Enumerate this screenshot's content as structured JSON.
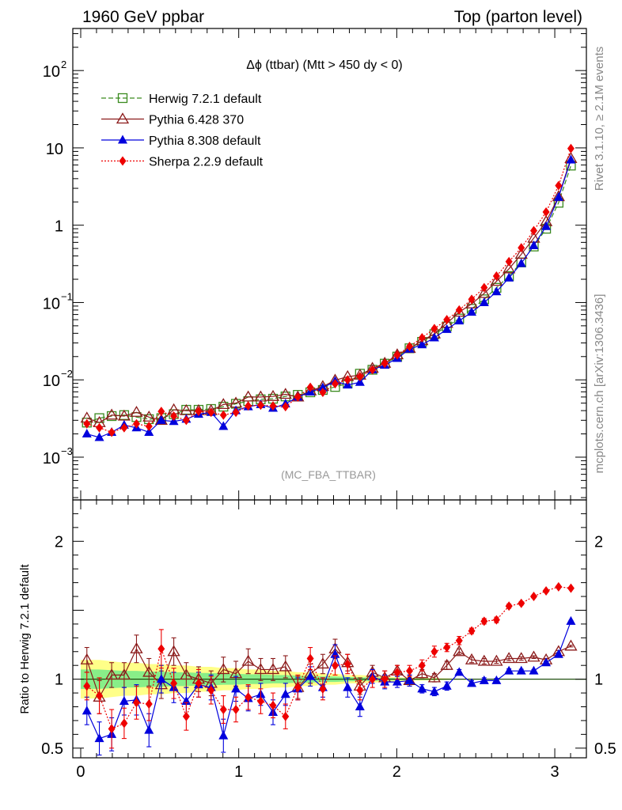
{
  "header": {
    "left": "1960 GeV ppbar",
    "right": "Top (parton level)"
  },
  "side_labels": {
    "top": "Rivet 3.1.10, ≥ 2.1M events",
    "bottom": "mcplots.cern.ch [arXiv:1306.3436]"
  },
  "plot_title": "Δϕ (ttbar) (Mtt > 450 dy < 0)",
  "watermark": "(MC_FBA_TTBAR)",
  "ratio_ylabel": "Ratio to Herwig 7.2.1 default",
  "colors": {
    "herwig": "#3a8a1e",
    "pythia6": "#8b1a1a",
    "pythia8": "#0000dd",
    "sherpa": "#ee0000",
    "band_yellow": "#ffff88",
    "band_green": "#88ee88"
  },
  "chart_data": [
    {
      "type": "line",
      "scale": "log",
      "xlim": [
        -0.05,
        3.2
      ],
      "ylim": [
        0.00028,
        350
      ],
      "yticks": [
        {
          "value": 0.001,
          "base": "10",
          "exp": "−3"
        },
        {
          "value": 0.01,
          "base": "10",
          "exp": "−2"
        },
        {
          "value": 0.1,
          "base": "10",
          "exp": "−1"
        },
        {
          "value": 1,
          "base": "1",
          "exp": ""
        },
        {
          "value": 10,
          "base": "10",
          "exp": ""
        },
        {
          "value": 100,
          "base": "10",
          "exp": "2"
        }
      ],
      "x": [
        0.039,
        0.118,
        0.196,
        0.275,
        0.353,
        0.432,
        0.51,
        0.589,
        0.668,
        0.746,
        0.825,
        0.903,
        0.982,
        1.06,
        1.139,
        1.217,
        1.296,
        1.374,
        1.453,
        1.532,
        1.61,
        1.689,
        1.767,
        1.846,
        1.924,
        2.003,
        2.081,
        2.16,
        2.238,
        2.317,
        2.395,
        2.474,
        2.553,
        2.631,
        2.71,
        2.788,
        2.867,
        2.945,
        3.024,
        3.102
      ],
      "series": [
        {
          "name": "Herwig 7.2.1 default",
          "key": "herwig",
          "values": [
            0.0028,
            0.0032,
            0.0034,
            0.0035,
            0.0033,
            0.0031,
            0.0032,
            0.0036,
            0.0041,
            0.0041,
            0.0042,
            0.0045,
            0.0049,
            0.0053,
            0.0056,
            0.0057,
            0.0061,
            0.0064,
            0.0069,
            0.0074,
            0.0081,
            0.009,
            0.012,
            0.0135,
            0.0162,
            0.02,
            0.0256,
            0.031,
            0.039,
            0.049,
            0.062,
            0.083,
            0.11,
            0.155,
            0.22,
            0.33,
            0.53,
            0.9,
            1.95,
            5.9
          ]
        },
        {
          "name": "Pythia 6.428 370",
          "key": "pythia6",
          "values": [
            0.0032,
            0.0028,
            0.0035,
            0.0034,
            0.0038,
            0.0033,
            0.003,
            0.0041,
            0.004,
            0.004,
            0.004,
            0.0048,
            0.005,
            0.006,
            0.006,
            0.0061,
            0.0065,
            0.006,
            0.0072,
            0.0082,
            0.0099,
            0.011,
            0.0115,
            0.0141,
            0.0164,
            0.0211,
            0.0255,
            0.0322,
            0.0393,
            0.0539,
            0.075,
            0.096,
            0.131,
            0.188,
            0.273,
            0.42,
            0.68,
            1.11,
            2.34,
            7.3
          ]
        },
        {
          "name": "Pythia 8.308 default",
          "key": "pythia8",
          "values": [
            0.002,
            0.0018,
            0.0021,
            0.0026,
            0.0024,
            0.0021,
            0.003,
            0.0029,
            0.0031,
            0.0036,
            0.0038,
            0.0025,
            0.004,
            0.0045,
            0.0048,
            0.0043,
            0.0049,
            0.006,
            0.007,
            0.0079,
            0.0096,
            0.0086,
            0.0093,
            0.0135,
            0.0155,
            0.019,
            0.025,
            0.0285,
            0.035,
            0.045,
            0.058,
            0.075,
            0.1,
            0.138,
            0.208,
            0.32,
            0.545,
            0.965,
            2.3,
            7.0
          ]
        },
        {
          "name": "Sherpa 2.2.9 default",
          "key": "sherpa",
          "values": [
            0.0027,
            0.0024,
            0.0021,
            0.0024,
            0.0027,
            0.0025,
            0.0039,
            0.0034,
            0.003,
            0.0039,
            0.0038,
            0.0035,
            0.0038,
            0.0046,
            0.0047,
            0.0046,
            0.0045,
            0.006,
            0.008,
            0.0069,
            0.0089,
            0.01,
            0.011,
            0.0135,
            0.0163,
            0.021,
            0.027,
            0.035,
            0.046,
            0.06,
            0.08,
            0.11,
            0.156,
            0.22,
            0.338,
            0.51,
            0.85,
            1.48,
            3.25,
            9.8
          ]
        }
      ]
    },
    {
      "type": "line",
      "scale": "linear",
      "ylabel": "Ratio to Herwig 7.2.1 default",
      "xlim": [
        -0.05,
        3.2
      ],
      "ylim": [
        0.43,
        2.3
      ],
      "xticks": [
        0,
        1,
        2,
        3
      ],
      "yticks": [
        0.5,
        1,
        2
      ],
      "band": {
        "yellow": [
          0.86,
          0.86,
          0.87,
          0.88,
          0.88,
          0.89,
          0.89,
          0.9,
          0.9,
          0.91,
          0.91,
          0.92,
          0.92,
          0.93,
          0.93,
          0.94,
          0.94,
          0.95,
          0.95,
          0.96,
          0.96,
          0.97,
          0.97,
          0.975,
          0.98,
          0.985,
          0.99,
          0.99,
          0.992,
          0.994,
          0.996,
          0.997,
          0.998,
          0.998,
          0.999,
          0.999,
          0.999,
          0.999,
          1.0,
          1.0
        ],
        "green": [
          0.93,
          0.93,
          0.935,
          0.94,
          0.94,
          0.945,
          0.945,
          0.95,
          0.95,
          0.955,
          0.955,
          0.96,
          0.96,
          0.965,
          0.965,
          0.97,
          0.97,
          0.975,
          0.975,
          0.98,
          0.98,
          0.984,
          0.986,
          0.988,
          0.99,
          0.992,
          0.994,
          0.995,
          0.996,
          0.997,
          0.998,
          0.998,
          0.999,
          0.999,
          0.999,
          1.0,
          1.0,
          1.0,
          1.0,
          1.0
        ]
      },
      "series": [
        {
          "name": "Pythia 6.428 370",
          "key": "pythia6",
          "values": [
            1.14,
            0.87,
            1.03,
            1.03,
            1.22,
            1.05,
            0.96,
            1.2,
            1.03,
            1.0,
            0.97,
            1.07,
            1.04,
            1.13,
            1.07,
            1.07,
            1.09,
            0.94,
            1.04,
            1.11,
            1.22,
            1.12,
            0.95,
            1.05,
            1.01,
            1.06,
            0.99,
            1.04,
            1.01,
            1.1,
            1.2,
            1.14,
            1.13,
            1.13,
            1.15,
            1.15,
            1.16,
            1.14,
            1.2,
            1.24
          ],
          "errors": [
            0.09,
            0.12,
            0.09,
            0.09,
            0.1,
            0.1,
            0.1,
            0.1,
            0.09,
            0.09,
            0.09,
            0.09,
            0.09,
            0.09,
            0.08,
            0.08,
            0.08,
            0.08,
            0.07,
            0.07,
            0.07,
            0.06,
            0.06,
            0.05,
            0.05,
            0.04,
            0.04,
            0.03,
            0.03,
            0.03,
            0.02,
            0.02,
            0.02,
            0.015,
            0.015,
            0.012,
            0.01,
            0.01,
            0.008,
            0.006
          ]
        },
        {
          "name": "Pythia 8.308 default",
          "key": "pythia8",
          "values": [
            0.77,
            0.57,
            0.6,
            0.84,
            0.85,
            0.63,
            1.0,
            0.94,
            0.84,
            0.96,
            0.94,
            0.59,
            0.93,
            0.86,
            0.89,
            0.76,
            0.89,
            0.93,
            1.02,
            0.94,
            1.18,
            0.94,
            0.8,
            1.02,
            0.98,
            0.98,
            0.99,
            0.93,
            0.91,
            0.95,
            1.05,
            0.97,
            0.99,
            0.99,
            1.06,
            1.06,
            1.06,
            1.12,
            1.18,
            1.42
          ],
          "errors": [
            0.1,
            0.12,
            0.12,
            0.1,
            0.11,
            0.12,
            0.1,
            0.11,
            0.1,
            0.09,
            0.09,
            0.12,
            0.09,
            0.09,
            0.08,
            0.09,
            0.08,
            0.08,
            0.07,
            0.07,
            0.07,
            0.07,
            0.07,
            0.05,
            0.05,
            0.04,
            0.04,
            0.03,
            0.03,
            0.03,
            0.02,
            0.02,
            0.02,
            0.015,
            0.015,
            0.012,
            0.01,
            0.01,
            0.008,
            0.006
          ]
        },
        {
          "name": "Sherpa 2.2.9 default",
          "key": "sherpa",
          "values": [
            0.95,
            0.88,
            0.64,
            0.68,
            0.83,
            0.82,
            1.22,
            0.97,
            0.73,
            0.97,
            0.92,
            0.78,
            0.78,
            0.87,
            0.84,
            0.81,
            0.73,
            0.94,
            1.15,
            0.93,
            1.1,
            1.11,
            0.92,
            1.0,
            1.0,
            1.05,
            1.06,
            1.1,
            1.2,
            1.23,
            1.28,
            1.35,
            1.42,
            1.43,
            1.53,
            1.55,
            1.6,
            1.64,
            1.67,
            1.66
          ],
          "errors": [
            0.1,
            0.13,
            0.14,
            0.11,
            0.12,
            0.12,
            0.14,
            0.11,
            0.1,
            0.1,
            0.1,
            0.1,
            0.09,
            0.09,
            0.09,
            0.09,
            0.09,
            0.09,
            0.08,
            0.08,
            0.07,
            0.07,
            0.07,
            0.06,
            0.06,
            0.05,
            0.04,
            0.04,
            0.04,
            0.03,
            0.03,
            0.02,
            0.02,
            0.02,
            0.015,
            0.012,
            0.01,
            0.01,
            0.008,
            0.006
          ]
        }
      ]
    }
  ]
}
